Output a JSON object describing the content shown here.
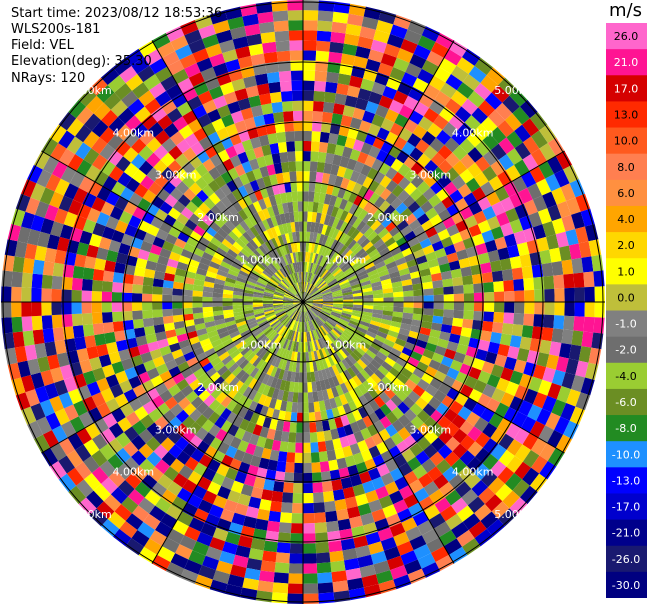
{
  "header": {
    "start_time": "Start time: 2023/08/12 18:53:36",
    "site": "WLS200s-181",
    "field": "Field: VEL",
    "elevation": "Elevation(deg): 35.30",
    "nrays": "NRays: 120"
  },
  "chart_data": {
    "type": "heatmap",
    "projection": "polar PPI",
    "field": "VEL",
    "units": "m/s",
    "n_rays": 120,
    "ring_labels": [
      "1.00km",
      "2.00km",
      "3.00km",
      "4.00km",
      "5.00km"
    ],
    "ring_label_bearings_deg": [
      45,
      135,
      225,
      315
    ],
    "radial_lines_deg": [
      0,
      30,
      60,
      90,
      120,
      150,
      180,
      210,
      240,
      270,
      300,
      330
    ],
    "colorbar": {
      "ticks": [
        "26.0",
        "21.0",
        "17.0",
        "13.0",
        "10.0",
        "8.0",
        "6.0",
        "4.0",
        "2.0",
        "1.0",
        "0.0",
        "-1.0",
        "-2.0",
        "-4.0",
        "-6.0",
        "-8.0",
        "-10.0",
        "-13.0",
        "-17.0",
        "-21.0",
        "-26.0",
        "-30.0"
      ],
      "colors": [
        "#ff66cc",
        "#ff1493",
        "#d50000",
        "#ff2a00",
        "#ff5a1e",
        "#ff7f50",
        "#ff9040",
        "#ffa500",
        "#ffd700",
        "#ffff00",
        "#bfbf3a",
        "#808080",
        "#6e6e6e",
        "#9acd32",
        "#6b8e23",
        "#228b22",
        "#1e90ff",
        "#0000ff",
        "#0000cd",
        "#00008b",
        "#191970",
        "#000080"
      ]
    }
  }
}
